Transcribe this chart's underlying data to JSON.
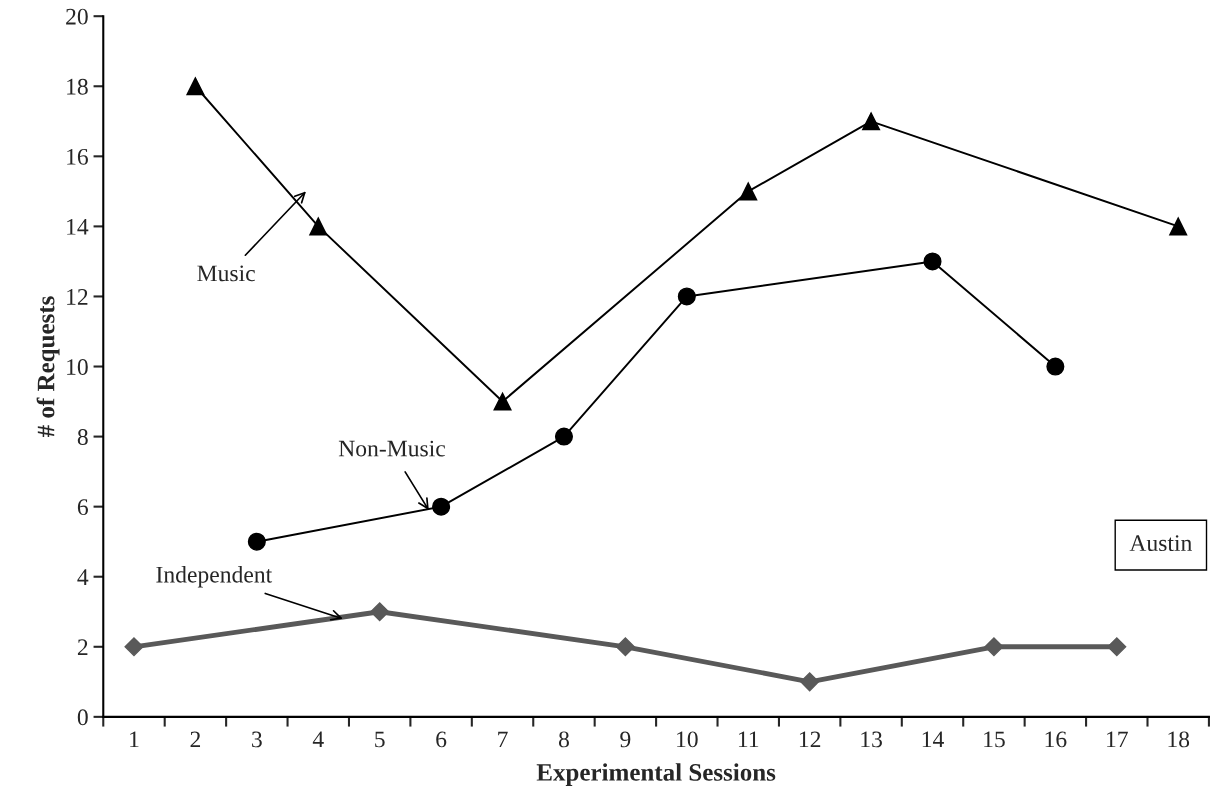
{
  "chart_data": {
    "type": "line",
    "xlabel": "Experimental Sessions",
    "ylabel": "# of Requests",
    "categories": [
      "1",
      "2",
      "3",
      "4",
      "5",
      "6",
      "7",
      "8",
      "9",
      "10",
      "11",
      "12",
      "13",
      "14",
      "15",
      "16",
      "17",
      "18"
    ],
    "series": [
      {
        "name": "Music",
        "color": "#000000",
        "marker": "triangle",
        "values": [
          null,
          18,
          null,
          14,
          null,
          null,
          9,
          null,
          null,
          null,
          15,
          null,
          17,
          null,
          null,
          null,
          null,
          14
        ]
      },
      {
        "name": "Non-Music",
        "color": "#000000",
        "marker": "circle",
        "values": [
          null,
          null,
          5,
          null,
          null,
          6,
          null,
          8,
          null,
          12,
          null,
          null,
          null,
          13,
          null,
          10,
          null,
          null
        ]
      },
      {
        "name": "Independent",
        "color": "#595959",
        "marker": "diamond",
        "values": [
          2,
          null,
          null,
          null,
          3,
          null,
          null,
          null,
          2,
          null,
          null,
          1,
          null,
          null,
          2,
          null,
          2,
          null
        ]
      }
    ],
    "annotations": [
      "Austin"
    ],
    "ylim": [
      0,
      20
    ],
    "yticks": [
      0,
      2,
      4,
      6,
      8,
      10,
      12,
      14,
      16,
      18,
      20
    ],
    "grid": false,
    "legend": false
  }
}
